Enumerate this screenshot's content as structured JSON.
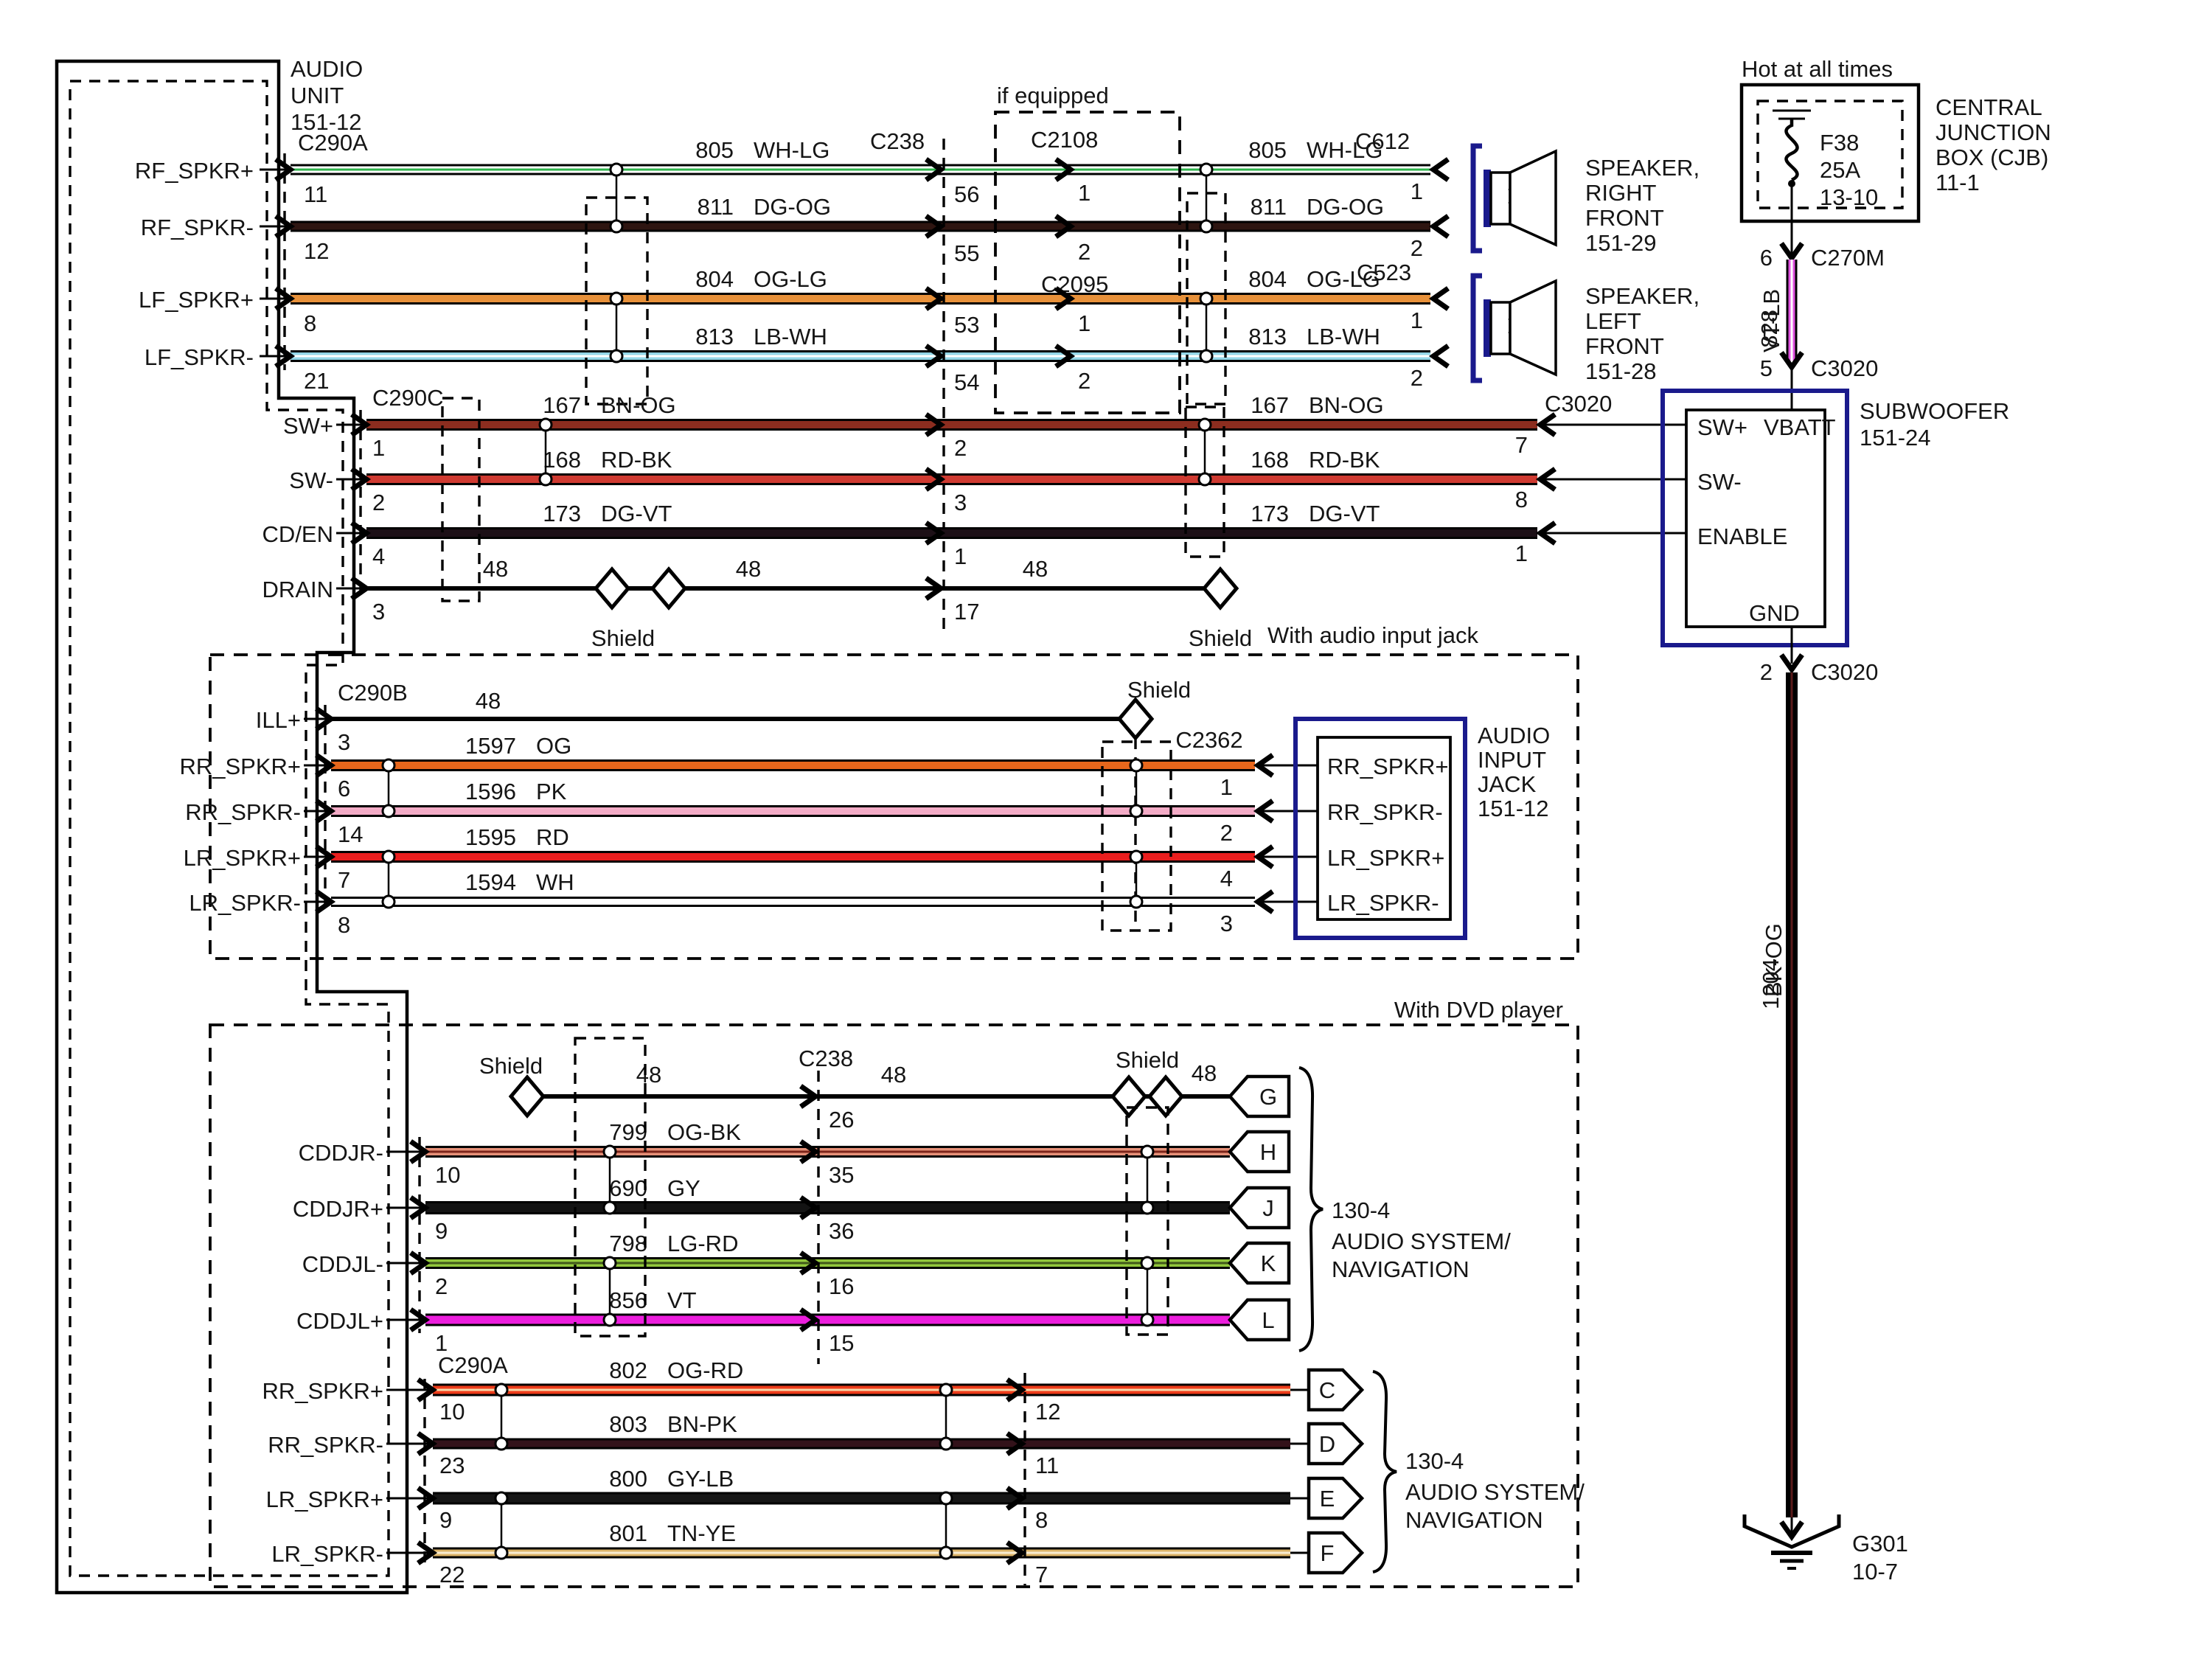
{
  "accent_navy": "#1a1a8c",
  "wires": {
    "805": {
      "t": 9,
      "core": "#ffffff",
      "stripe": "#2eb34b"
    },
    "811": {
      "t": 9,
      "core": "#2e1511"
    },
    "804": {
      "t": 10,
      "core": "#e8913a"
    },
    "813": {
      "t": 10,
      "core": "#93d7e8",
      "stripe": "#ffffff"
    },
    "167": {
      "t": 10,
      "core": "#8c2d1f"
    },
    "168": {
      "t": 10,
      "core": "#cf3a31"
    },
    "173": {
      "t": 10,
      "core": "#1c0f16"
    },
    "48": {
      "t": 6,
      "plain": true
    },
    "1597": {
      "t": 10,
      "core": "#e8671c"
    },
    "1596": {
      "t": 10,
      "core": "#f3abc6"
    },
    "1595": {
      "t": 10,
      "core": "#ea1e1e"
    },
    "1594": {
      "t": 8,
      "core": "#ffffff"
    },
    "799": {
      "t": 10,
      "core": "#e59078",
      "stripe": "#7c241a"
    },
    "690": {
      "t": 12,
      "core": "#131313"
    },
    "798": {
      "t": 10,
      "core": "#92c73c",
      "stripe": "#42591b"
    },
    "856": {
      "t": 11,
      "core": "#ec1edd"
    },
    "802": {
      "t": 11,
      "core": "#ee3c1a",
      "stripe": "#f6d7a8"
    },
    "803": {
      "t": 9,
      "core": "#33121a"
    },
    "800": {
      "t": 11,
      "core": "#161616"
    },
    "801": {
      "t": 9,
      "core": "#dcb469",
      "stripe": "#f7ecd2"
    },
    "828": {
      "t": 9,
      "core": "#e052e0",
      "stripe": "#ffffff"
    },
    "1204": {
      "t": 10,
      "core": "#000000",
      "stripe": "#5a1a1a"
    }
  },
  "front": {
    "unit_name": [
      "AUDIO",
      "UNIT",
      "151-12"
    ],
    "unit_conn": "C290A",
    "mid_conn": "C238",
    "if_equipped": "if equipped",
    "conn_2108": "C2108",
    "conn_2095": "C2095",
    "conn_612": "C612",
    "conn_523": "C523",
    "rows": [
      {
        "signal": "RF_SPKR+",
        "pin": "11",
        "wire": "805",
        "code": "WH-LG",
        "mid_pin": "56",
        "ie_pin": "1",
        "spk_pin": "1"
      },
      {
        "signal": "RF_SPKR-",
        "pin": "12",
        "wire": "811",
        "code": "DG-OG",
        "mid_pin": "55",
        "ie_pin": "2",
        "spk_pin": "2"
      },
      {
        "signal": "LF_SPKR+",
        "pin": "8",
        "wire": "804",
        "code": "OG-LG",
        "mid_pin": "53",
        "ie_pin": "1",
        "spk_pin": "1"
      },
      {
        "signal": "LF_SPKR-",
        "pin": "21",
        "wire": "813",
        "code": "LB-WH",
        "mid_pin": "54",
        "ie_pin": "2",
        "spk_pin": "2"
      }
    ],
    "speaker_right": [
      "SPEAKER,",
      "RIGHT",
      "FRONT",
      "151-29"
    ],
    "speaker_left": [
      "SPEAKER,",
      "LEFT",
      "FRONT",
      "151-28"
    ]
  },
  "sw": {
    "conn": "C290C",
    "sub_conn": "C3020",
    "shield": "Shield",
    "drain_labels": [
      "48",
      "48",
      "48"
    ],
    "mid_pins": [
      "2",
      "3",
      "1",
      "17"
    ],
    "rows": [
      {
        "signal": "SW+",
        "pin": "1",
        "wire": "167",
        "code": "BN-OG",
        "sub_pin": "7"
      },
      {
        "signal": "SW-",
        "pin": "2",
        "wire": "168",
        "code": "RD-BK",
        "sub_pin": "8"
      },
      {
        "signal": "CD/EN",
        "pin": "4",
        "wire": "173",
        "code": "DG-VT",
        "sub_pin": "1"
      },
      {
        "signal": "DRAIN",
        "pin": "3",
        "wire": "48"
      }
    ]
  },
  "power": {
    "hot": "Hot at all times",
    "fuse": [
      "F38",
      "25A",
      "13-10"
    ],
    "cjb": [
      "CENTRAL",
      "JUNCTION",
      "BOX (CJB)",
      "11-1"
    ],
    "pin_top": "6",
    "conn_top": "C270M",
    "wire": "828",
    "code": "VT-LB",
    "pin_bot": "5",
    "conn_bot": "C3020"
  },
  "sub": {
    "title": [
      "SUBWOOFER",
      "151-24"
    ],
    "p_swp": "SW+",
    "p_vbatt": "VBATT",
    "p_swm": "SW-",
    "p_enable": "ENABLE",
    "p_gnd": "GND",
    "gnd_pin": "2",
    "gnd_conn": "C3020",
    "gnd_wire": "1204",
    "gnd_code": "BK-OG",
    "ground": [
      "G301",
      "10-7"
    ]
  },
  "aij": {
    "box_label": "With audio input jack",
    "conn": "C290B",
    "shield": "Shield",
    "jack_conn": "C2362",
    "ill": {
      "signal": "ILL+",
      "pin": "3",
      "wire": "48"
    },
    "rows": [
      {
        "signal": "RR_SPKR+",
        "pin": "6",
        "wire": "1597",
        "code": "OG",
        "jack_pin": "1"
      },
      {
        "signal": "RR_SPKR-",
        "pin": "14",
        "wire": "1596",
        "code": "PK",
        "jack_pin": "2"
      },
      {
        "signal": "LR_SPKR+",
        "pin": "7",
        "wire": "1595",
        "code": "RD",
        "jack_pin": "4"
      },
      {
        "signal": "LR_SPKR-",
        "pin": "8",
        "wire": "1594",
        "code": "WH",
        "jack_pin": "3"
      }
    ],
    "jack_title": [
      "AUDIO",
      "INPUT",
      "JACK",
      "151-12"
    ],
    "jack_pins": [
      "RR_SPKR+",
      "RR_SPKR-",
      "LR_SPKR+",
      "LR_SPKR-"
    ]
  },
  "dvd": {
    "box_label": "With DVD player",
    "shield1": "Shield",
    "shield2": "Shield",
    "mid_conn": "C238",
    "drain_labels": [
      "48",
      "48",
      "48"
    ],
    "drain_mid_pin": "26",
    "drain_pennant": "G",
    "rows": [
      {
        "signal": "CDDJR-",
        "pin": "10",
        "wire": "799",
        "code": "OG-BK",
        "mid_pin": "35",
        "pennant": "H"
      },
      {
        "signal": "CDDJR+",
        "pin": "9",
        "wire": "690",
        "code": "GY",
        "mid_pin": "36",
        "pennant": "J"
      },
      {
        "signal": "CDDJL-",
        "pin": "2",
        "wire": "798",
        "code": "LG-RD",
        "mid_pin": "16",
        "pennant": "K"
      },
      {
        "signal": "CDDJL+",
        "pin": "1",
        "wire": "856",
        "code": "VT",
        "mid_pin": "15",
        "pennant": "L"
      }
    ],
    "brace": [
      "130-4",
      "AUDIO SYSTEM/",
      "NAVIGATION"
    ]
  },
  "rear": {
    "conn": "C290A",
    "rows": [
      {
        "signal": "RR_SPKR+",
        "pin": "10",
        "wire": "802",
        "code": "OG-RD",
        "mid_pin": "12",
        "pennant": "C"
      },
      {
        "signal": "RR_SPKR-",
        "pin": "23",
        "wire": "803",
        "code": "BN-PK",
        "mid_pin": "11",
        "pennant": "D"
      },
      {
        "signal": "LR_SPKR+",
        "pin": "9",
        "wire": "800",
        "code": "GY-LB",
        "mid_pin": "8",
        "pennant": "E"
      },
      {
        "signal": "LR_SPKR-",
        "pin": "22",
        "wire": "801",
        "code": "TN-YE",
        "mid_pin": "7",
        "pennant": "F"
      }
    ],
    "brace": [
      "130-4",
      "AUDIO SYSTEM/",
      "NAVIGATION"
    ]
  }
}
